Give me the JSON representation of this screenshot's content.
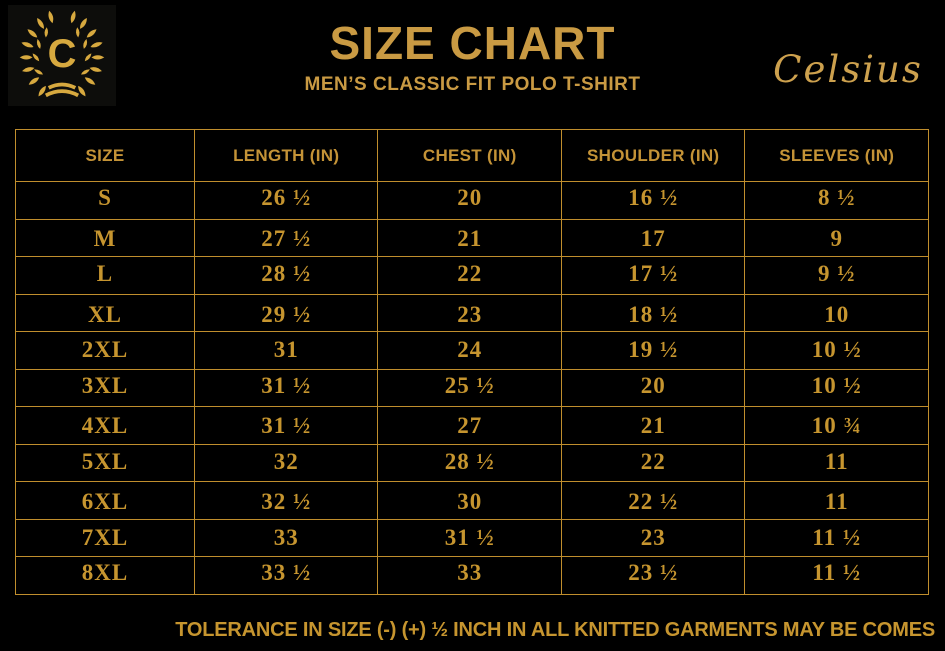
{
  "brand": {
    "logo_letter": "C",
    "brand_name": "Celsius"
  },
  "header": {
    "title": "SIZE CHART",
    "subtitle": "MEN’S CLASSIC FIT POLO T-SHIRT"
  },
  "colors": {
    "background": "#000000",
    "gold_heading": "#C99A43",
    "gold_table_text": "#C6952F",
    "gold_border": "#C08E2D",
    "logo_gold": "#D7A93F",
    "logo_background": "#0D0D0B"
  },
  "chart_data": {
    "type": "table",
    "title": "SIZE CHART — MEN’S CLASSIC FIT POLO T-SHIRT",
    "columns": [
      "SIZE",
      "LENGTH (IN)",
      "CHEST (IN)",
      "SHOULDER (IN)",
      "SLEEVES (IN)"
    ],
    "rows": [
      [
        "S",
        "26 ½",
        "20",
        "16 ½",
        "8 ½"
      ],
      [
        "M",
        "27 ½",
        "21",
        "17",
        "9"
      ],
      [
        "L",
        "28 ½",
        "22",
        "17 ½",
        "9 ½"
      ],
      [
        "XL",
        "29 ½",
        "23",
        "18 ½",
        "10"
      ],
      [
        "2XL",
        "31",
        "24",
        "19 ½",
        "10 ½"
      ],
      [
        "3XL",
        "31 ½",
        "25 ½",
        "20",
        "10 ½"
      ],
      [
        "4XL",
        "31 ½",
        "27",
        "21",
        "10 ¾"
      ],
      [
        "5XL",
        "32",
        "28 ½",
        "22",
        "11"
      ],
      [
        "6XL",
        "32 ½",
        "30",
        "22 ½",
        "11"
      ],
      [
        "7XL",
        "33",
        "31 ½",
        "23",
        "11 ½"
      ],
      [
        "8XL",
        "33 ½",
        "33",
        "23 ½",
        "11 ½"
      ]
    ]
  },
  "footer": {
    "note": "TOLERANCE IN SIZE (-) (+)  ½ INCH IN ALL KNITTED GARMENTS MAY BE COMES"
  }
}
